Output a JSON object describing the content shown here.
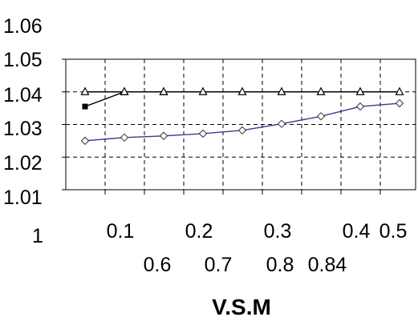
{
  "chart_data": {
    "type": "line",
    "title": "",
    "xlabel": "V.S.M",
    "ylabel": "",
    "y_tick_labels": [
      "1.06",
      "1.05",
      "1.04",
      "1.03",
      "1.02",
      "1.01",
      "1"
    ],
    "x_tick_labels_row1": [
      "0.1",
      "0.2",
      "0.3",
      "0.4",
      "0.5"
    ],
    "x_tick_labels_row2": [
      "0.6",
      "0.7",
      "0.8",
      "0.84"
    ],
    "ylim": [
      1.01,
      1.05
    ],
    "grid": true,
    "grid_style": "dashed",
    "x_positions": [
      0.1,
      0.2,
      0.3,
      0.4,
      0.5,
      0.6,
      0.7,
      0.8,
      0.84
    ],
    "series": [
      {
        "values": [
          1.0355,
          1.04,
          1.04
        ],
        "color": "#000000",
        "markers": [
          "square",
          "triangle",
          "triangle"
        ]
      },
      {
        "values": [
          1.04,
          1.04,
          1.04,
          1.04,
          1.04,
          1.04,
          1.04,
          1.04,
          1.04
        ],
        "color": "#000000",
        "marker": "triangle"
      },
      {
        "values": [
          1.025,
          1.026,
          1.0265,
          1.0272,
          1.0282,
          1.0302,
          1.0325,
          1.0355,
          1.0365
        ],
        "color": "#3a3a9a",
        "marker": "diamond"
      }
    ]
  }
}
